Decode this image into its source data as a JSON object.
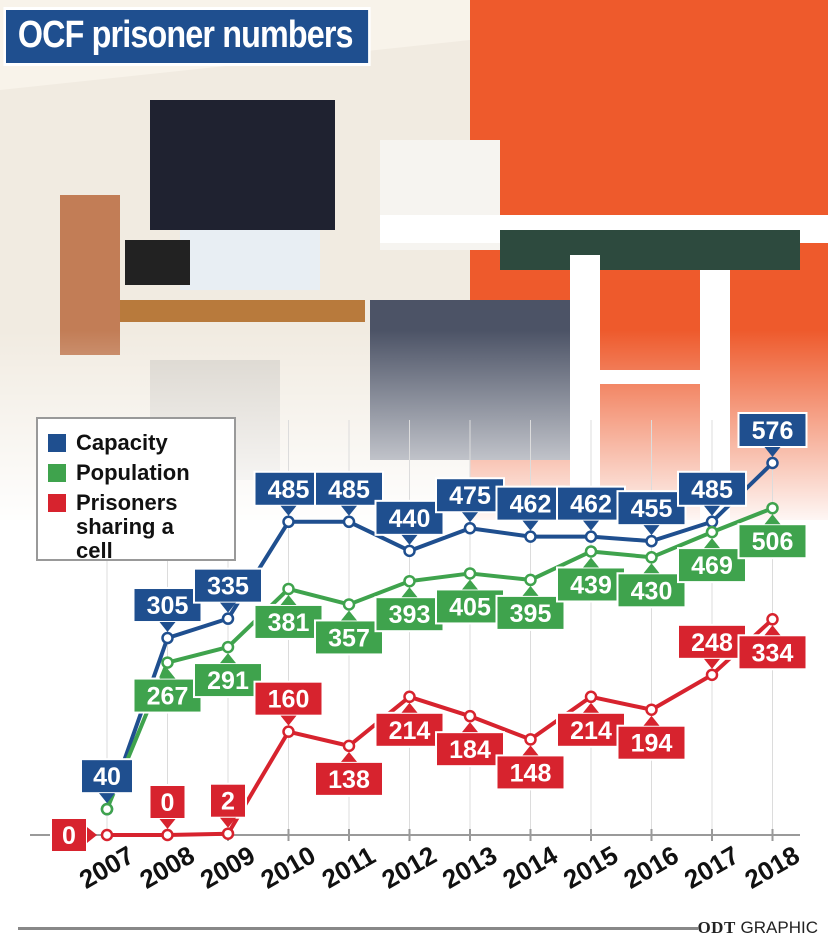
{
  "title": "OCF prisoner numbers",
  "credit": {
    "brand": "ODT",
    "label": "GRAPHIC"
  },
  "legend": [
    {
      "label": "Capacity",
      "color": "#1f4f8f"
    },
    {
      "label": "Population",
      "color": "#3fa34d"
    },
    {
      "label": "Prisoners\nsharing a cell",
      "color": "#d7232e"
    }
  ],
  "chart_data": {
    "type": "line",
    "title": "OCF prisoner numbers",
    "x": [
      "2007",
      "2008",
      "2009",
      "2010",
      "2011",
      "2012",
      "2013",
      "2014",
      "2015",
      "2016",
      "2017",
      "2018"
    ],
    "ylim": [
      0,
      600
    ],
    "grid": true,
    "legend_position": "left",
    "series": [
      {
        "name": "Capacity",
        "color": "#1f4f8f",
        "values": [
          40,
          305,
          335,
          485,
          485,
          440,
          475,
          462,
          462,
          455,
          485,
          576
        ]
      },
      {
        "name": "Population",
        "color": "#3fa34d",
        "values": [
          40,
          267,
          291,
          381,
          357,
          393,
          405,
          395,
          439,
          430,
          469,
          506
        ]
      },
      {
        "name": "Prisoners sharing a cell",
        "color": "#d7232e",
        "values": [
          0,
          0,
          2,
          160,
          138,
          214,
          184,
          148,
          214,
          194,
          248,
          334
        ]
      }
    ]
  }
}
